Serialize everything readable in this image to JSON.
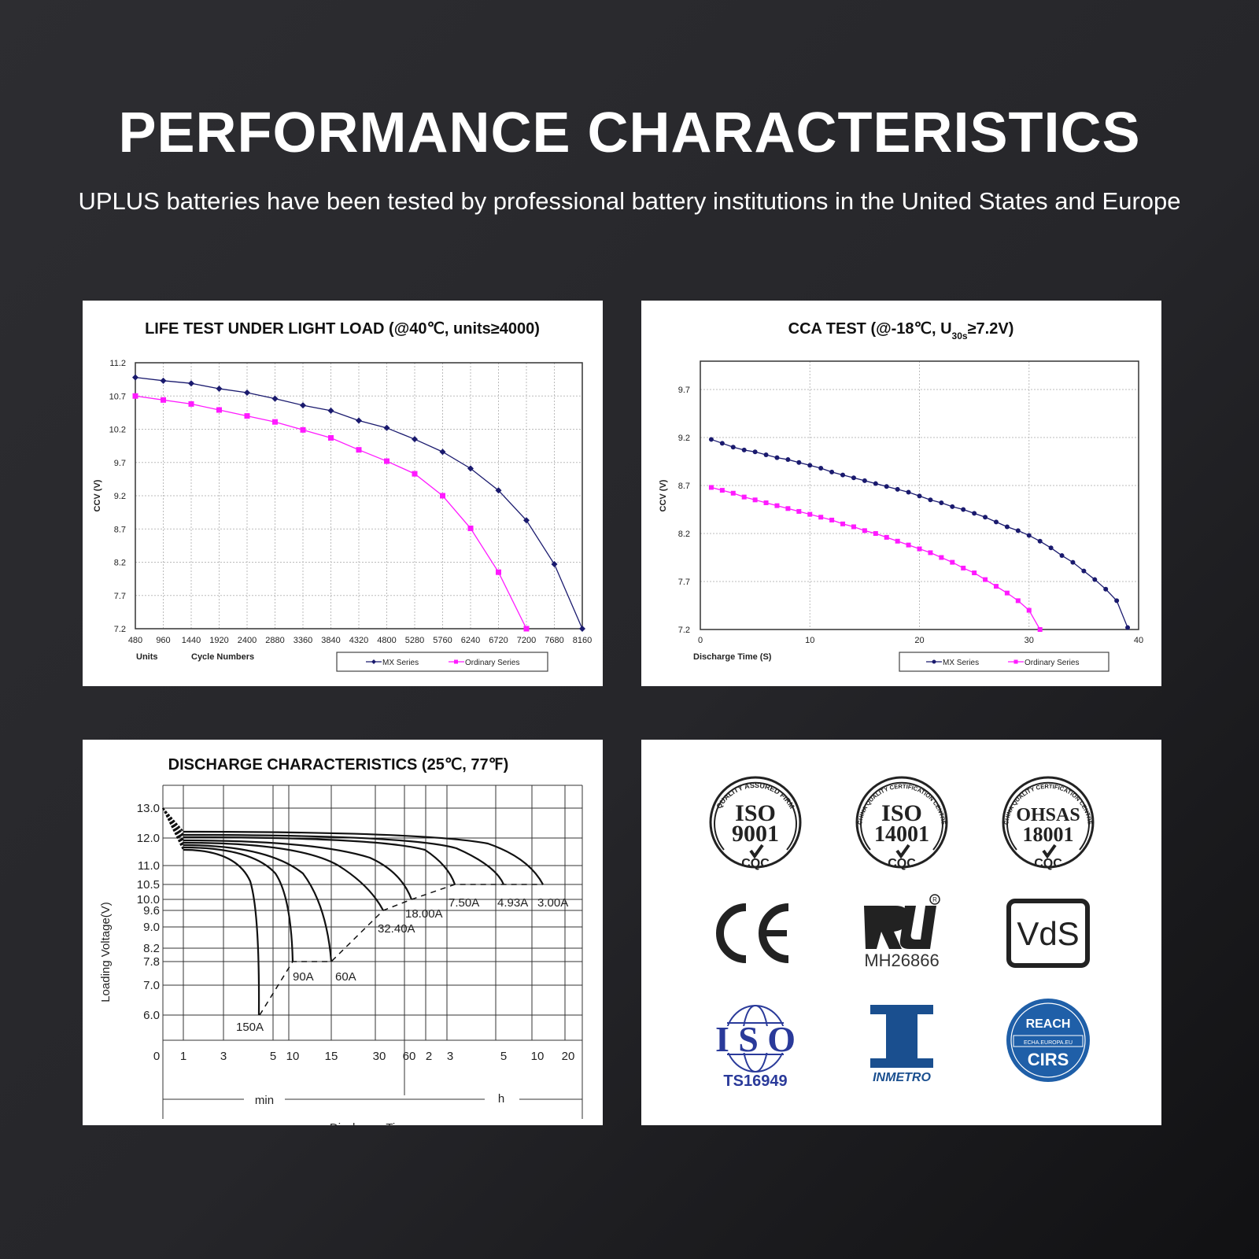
{
  "header": {
    "title": "PERFORMANCE CHARACTERISTICS",
    "subtitle": "UPLUS batteries have been tested by professional battery institutions in the United States and Europe"
  },
  "colors": {
    "mx_series": "#1a1a6e",
    "ordinary_series": "#ff1aff",
    "background": "#2a2a2e",
    "logo_blue": "#2a3a9a",
    "reach_blue": "#1f5fa8",
    "inmetro_blue": "#1a4f8f"
  },
  "chart_data": [
    {
      "type": "line",
      "title": "LIFE TEST UNDER LIGHT LOAD (@40℃, units≥4000)",
      "xlabel": "Cycle Numbers",
      "xunit_label": "Units",
      "ylabel": "CCV (V)",
      "ylim": [
        7.2,
        11.2
      ],
      "yticks": [
        "11.2",
        "10.7",
        "10.2",
        "9.7",
        "9.2",
        "8.7",
        "8.2",
        "7.7",
        "7.2"
      ],
      "x": [
        480,
        960,
        1440,
        1920,
        2400,
        2880,
        3360,
        3840,
        4320,
        4800,
        5280,
        5760,
        6240,
        6720,
        7200,
        7680,
        8160
      ],
      "grid": true,
      "legend_position": "bottom-right",
      "series": [
        {
          "name": "MX Series",
          "marker": "diamond",
          "values": [
            10.98,
            10.93,
            10.89,
            10.81,
            10.75,
            10.66,
            10.56,
            10.48,
            10.33,
            10.22,
            10.05,
            9.86,
            9.61,
            9.28,
            8.83,
            8.17,
            7.2
          ]
        },
        {
          "name": "Ordinary Series",
          "marker": "square",
          "values": [
            10.7,
            10.64,
            10.58,
            10.49,
            10.4,
            10.31,
            10.19,
            10.07,
            9.89,
            9.72,
            9.53,
            9.2,
            8.71,
            8.05,
            7.2,
            null,
            null
          ]
        }
      ]
    },
    {
      "type": "line",
      "title": "CCA TEST (@-18℃, U30s≥7.2V)",
      "title_parts": {
        "main": "CCA TEST (@-18℃, U",
        "sub": "30s",
        "tail": "≥7.2V)"
      },
      "xlabel": "Discharge Time (S)",
      "ylabel": "CCV (V)",
      "xlim": [
        0,
        40
      ],
      "ylim": [
        7.2,
        9.9
      ],
      "xticks": [
        "0",
        "10",
        "20",
        "30",
        "40"
      ],
      "yticks": [
        "9.7",
        "9.2",
        "8.7",
        "8.2",
        "7.7",
        "7.2"
      ],
      "grid": true,
      "legend_position": "bottom-right",
      "series": [
        {
          "name": "MX Series",
          "marker": "circle",
          "x": [
            1,
            2,
            3,
            4,
            5,
            6,
            7,
            8,
            9,
            10,
            11,
            12,
            13,
            14,
            15,
            16,
            17,
            18,
            19,
            20,
            21,
            22,
            23,
            24,
            25,
            26,
            27,
            28,
            29,
            30,
            31,
            32,
            33,
            34,
            35,
            36,
            37,
            38,
            39
          ],
          "values": [
            9.18,
            9.14,
            9.1,
            9.07,
            9.05,
            9.02,
            8.99,
            8.97,
            8.94,
            8.91,
            8.88,
            8.84,
            8.81,
            8.78,
            8.75,
            8.72,
            8.69,
            8.66,
            8.63,
            8.59,
            8.55,
            8.52,
            8.48,
            8.45,
            8.41,
            8.37,
            8.32,
            8.27,
            8.23,
            8.18,
            8.12,
            8.05,
            7.97,
            7.9,
            7.81,
            7.72,
            7.62,
            7.5,
            7.22
          ]
        },
        {
          "name": "Ordinary Series",
          "marker": "square",
          "x": [
            1,
            2,
            3,
            4,
            5,
            6,
            7,
            8,
            9,
            10,
            11,
            12,
            13,
            14,
            15,
            16,
            17,
            18,
            19,
            20,
            21,
            22,
            23,
            24,
            25,
            26,
            27,
            28,
            29,
            30,
            31
          ],
          "values": [
            8.68,
            8.65,
            8.62,
            8.58,
            8.55,
            8.52,
            8.49,
            8.46,
            8.43,
            8.4,
            8.37,
            8.34,
            8.3,
            8.27,
            8.23,
            8.2,
            8.16,
            8.12,
            8.08,
            8.04,
            8.0,
            7.95,
            7.9,
            7.84,
            7.79,
            7.72,
            7.65,
            7.58,
            7.5,
            7.4,
            7.2
          ]
        }
      ]
    },
    {
      "type": "line",
      "title": "DISCHARGE CHARACTERISTICS (25℃, 77℉)",
      "xlabel": "Discharge Time",
      "ylabel": "Loading  Voltage(V)",
      "yticks": [
        "13.0",
        "12.0",
        "11.0",
        "10.5",
        "10.0",
        "9.6",
        "9.0",
        "8.2",
        "7.8",
        "7.0",
        "6.0"
      ],
      "xticks": [
        "0",
        "1",
        "3",
        "5",
        "10",
        "15",
        "30",
        "60",
        "2",
        "3",
        "5",
        "10",
        "20"
      ],
      "x_units": {
        "min": "min",
        "h": "h"
      },
      "grid": true,
      "series": [
        {
          "name": "150A",
          "cutoff_voltage": 6.0,
          "end_time": "~4 min"
        },
        {
          "name": "90A",
          "cutoff_voltage": 7.8,
          "end_time": "10 min"
        },
        {
          "name": "60A",
          "cutoff_voltage": 7.8,
          "end_time": "15 min"
        },
        {
          "name": "32.40A",
          "cutoff_voltage": 9.6,
          "end_time": "30 min"
        },
        {
          "name": "18.00A",
          "cutoff_voltage": 10.0,
          "end_time": "60 min"
        },
        {
          "name": "7.50A",
          "cutoff_voltage": 10.5,
          "end_time": "3 h"
        },
        {
          "name": "4.93A",
          "cutoff_voltage": 10.5,
          "end_time": "5 h"
        },
        {
          "name": "3.00A",
          "cutoff_voltage": 10.5,
          "end_time": "10 h"
        }
      ]
    }
  ],
  "charts": {
    "life": {
      "title": "LIFE TEST UNDER LIGHT LOAD (@40℃, units≥4000)",
      "ylabel": "CCV (V)",
      "units_label": "Units",
      "xlabel": "Cycle Numbers",
      "legend": [
        "MX Series",
        "Ordinary Series"
      ]
    },
    "cca": {
      "title_main": "CCA TEST (@-18℃, U",
      "title_sub": "30s",
      "title_tail": "≥7.2V)",
      "ylabel": "CCV (V)",
      "xlabel": "Discharge Time (S)",
      "legend": [
        "MX Series",
        "Ordinary Series"
      ]
    },
    "discharge": {
      "title": "DISCHARGE CHARACTERISTICS (25℃, 77℉)",
      "ylabel": "Loading  Voltage(V)",
      "xlabel": "Discharge Time",
      "min_label": "min",
      "h_label": "h"
    }
  },
  "certifications": [
    {
      "name": "ISO 9001",
      "line1": "ISO",
      "line2": "9001",
      "ring": "QUALITY ASSURED FIRM",
      "footer": "CQC"
    },
    {
      "name": "ISO 14001",
      "line1": "ISO",
      "line2": "14001",
      "ring": "CHINA QUALITY CERTIFICATION CENTRE",
      "footer": "CQC"
    },
    {
      "name": "OHSAS 18001",
      "line1": "OHSAS",
      "line2": "18001",
      "ring": "CHINA QUALITY CERTIFICATION CENTRE",
      "footer": "CQC"
    },
    {
      "name": "CE",
      "text": "CE"
    },
    {
      "name": "UL",
      "text": "MH26866",
      "reg": "®"
    },
    {
      "name": "VdS",
      "text": "VdS"
    },
    {
      "name": "ISO TS16949",
      "line1": "ISO",
      "line2": "TS16949"
    },
    {
      "name": "INMETRO",
      "text": "INMETRO"
    },
    {
      "name": "REACH CIRS",
      "line1": "REACH",
      "line2": "ECHA.EUROPA.EU",
      "line3": "CIRS"
    }
  ]
}
